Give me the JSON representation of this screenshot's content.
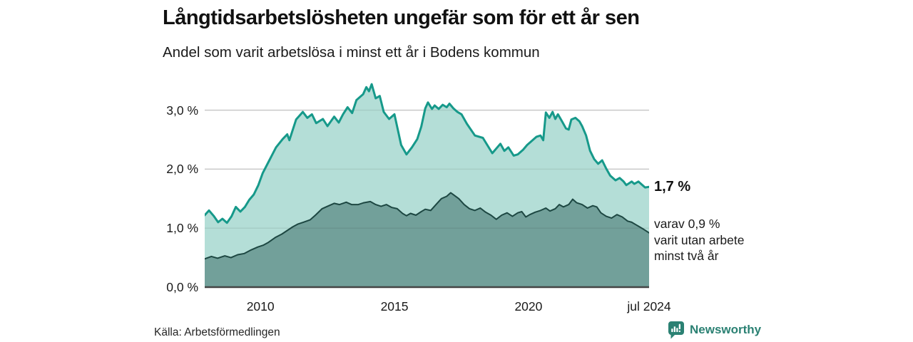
{
  "header": {
    "title": "Långtidsarbetslösheten ungefär som för ett år sen",
    "subtitle": "Andel som varit arbetslösa i minst ett år i Bodens kommun"
  },
  "annotations": {
    "end_value": "1,7 %",
    "sub_lines": [
      "varav 0,9 %",
      "varit utan arbete",
      "minst två år"
    ]
  },
  "footer": {
    "source": "Källa: Arbetsförmedlingen",
    "brand": "Newsworthy"
  },
  "colors": {
    "total_line": "#16998a",
    "total_fill": "#b4ded7",
    "two_year_line": "#1d4742",
    "two_year_fill": "#72a09a",
    "gridline": "#dadada",
    "axis_line": "#454545",
    "brand_teal": "#2b8173"
  },
  "chart_data": {
    "type": "area",
    "title": "Långtidsarbetslösheten ungefär som för ett år sen",
    "subtitle": "Andel som varit arbetslösa i minst ett år i Bodens kommun",
    "xlabel": "",
    "ylabel": "",
    "x_range": [
      2007.92,
      2024.5
    ],
    "ylim": [
      0,
      3.6
    ],
    "grid": "horizontal",
    "legend_position": "none",
    "yticks": [
      {
        "value": 0,
        "label": "0,0 %"
      },
      {
        "value": 1,
        "label": "1,0 %"
      },
      {
        "value": 2,
        "label": "2,0 %"
      },
      {
        "value": 3,
        "label": "3,0 %"
      }
    ],
    "xticks": [
      {
        "value": 2010,
        "label": "2010"
      },
      {
        "value": 2015,
        "label": "2015"
      },
      {
        "value": 2020,
        "label": "2020"
      },
      {
        "value": 2024.5,
        "label": "jul 2024"
      }
    ],
    "series": [
      {
        "name": "Andel arbetslösa minst ett år",
        "end_label": "1,7 %",
        "color": "#16998a",
        "fill": "#b4ded7",
        "stroke_width": 3,
        "points": [
          [
            2007.92,
            1.22
          ],
          [
            2008.08,
            1.3
          ],
          [
            2008.25,
            1.21
          ],
          [
            2008.42,
            1.1
          ],
          [
            2008.58,
            1.16
          ],
          [
            2008.75,
            1.09
          ],
          [
            2008.92,
            1.2
          ],
          [
            2009.08,
            1.36
          ],
          [
            2009.25,
            1.28
          ],
          [
            2009.42,
            1.36
          ],
          [
            2009.58,
            1.48
          ],
          [
            2009.75,
            1.57
          ],
          [
            2009.92,
            1.73
          ],
          [
            2010.08,
            1.93
          ],
          [
            2010.33,
            2.15
          ],
          [
            2010.58,
            2.37
          ],
          [
            2010.83,
            2.51
          ],
          [
            2011.0,
            2.59
          ],
          [
            2011.08,
            2.49
          ],
          [
            2011.33,
            2.84
          ],
          [
            2011.58,
            2.97
          ],
          [
            2011.75,
            2.87
          ],
          [
            2011.92,
            2.93
          ],
          [
            2012.08,
            2.78
          ],
          [
            2012.33,
            2.85
          ],
          [
            2012.5,
            2.73
          ],
          [
            2012.75,
            2.89
          ],
          [
            2012.92,
            2.79
          ],
          [
            2013.08,
            2.93
          ],
          [
            2013.25,
            3.05
          ],
          [
            2013.42,
            2.95
          ],
          [
            2013.58,
            3.17
          ],
          [
            2013.83,
            3.27
          ],
          [
            2013.95,
            3.39
          ],
          [
            2014.05,
            3.32
          ],
          [
            2014.15,
            3.44
          ],
          [
            2014.3,
            3.2
          ],
          [
            2014.45,
            3.24
          ],
          [
            2014.6,
            2.97
          ],
          [
            2014.8,
            2.85
          ],
          [
            2015.0,
            2.93
          ],
          [
            2015.1,
            2.72
          ],
          [
            2015.25,
            2.41
          ],
          [
            2015.45,
            2.25
          ],
          [
            2015.65,
            2.37
          ],
          [
            2015.85,
            2.51
          ],
          [
            2016.0,
            2.72
          ],
          [
            2016.15,
            3.03
          ],
          [
            2016.25,
            3.13
          ],
          [
            2016.4,
            3.02
          ],
          [
            2016.5,
            3.08
          ],
          [
            2016.65,
            3.02
          ],
          [
            2016.8,
            3.09
          ],
          [
            2016.95,
            3.05
          ],
          [
            2017.05,
            3.11
          ],
          [
            2017.2,
            3.03
          ],
          [
            2017.35,
            2.97
          ],
          [
            2017.5,
            2.93
          ],
          [
            2017.7,
            2.77
          ],
          [
            2018.0,
            2.57
          ],
          [
            2018.3,
            2.53
          ],
          [
            2018.65,
            2.27
          ],
          [
            2018.95,
            2.43
          ],
          [
            2019.1,
            2.31
          ],
          [
            2019.25,
            2.37
          ],
          [
            2019.45,
            2.23
          ],
          [
            2019.6,
            2.25
          ],
          [
            2019.8,
            2.33
          ],
          [
            2019.95,
            2.41
          ],
          [
            2020.1,
            2.47
          ],
          [
            2020.3,
            2.55
          ],
          [
            2020.45,
            2.57
          ],
          [
            2020.55,
            2.49
          ],
          [
            2020.65,
            2.96
          ],
          [
            2020.78,
            2.87
          ],
          [
            2020.9,
            2.97
          ],
          [
            2021.0,
            2.85
          ],
          [
            2021.1,
            2.93
          ],
          [
            2021.25,
            2.81
          ],
          [
            2021.4,
            2.69
          ],
          [
            2021.5,
            2.67
          ],
          [
            2021.6,
            2.84
          ],
          [
            2021.75,
            2.87
          ],
          [
            2021.9,
            2.81
          ],
          [
            2022.0,
            2.73
          ],
          [
            2022.15,
            2.57
          ],
          [
            2022.3,
            2.31
          ],
          [
            2022.45,
            2.17
          ],
          [
            2022.6,
            2.09
          ],
          [
            2022.75,
            2.15
          ],
          [
            2022.9,
            2.01
          ],
          [
            2023.05,
            1.89
          ],
          [
            2023.25,
            1.81
          ],
          [
            2023.4,
            1.85
          ],
          [
            2023.55,
            1.79
          ],
          [
            2023.65,
            1.73
          ],
          [
            2023.85,
            1.79
          ],
          [
            2023.95,
            1.75
          ],
          [
            2024.1,
            1.79
          ],
          [
            2024.25,
            1.73
          ],
          [
            2024.35,
            1.69
          ],
          [
            2024.5,
            1.7
          ]
        ]
      },
      {
        "name": "varav utan arbete minst två år",
        "end_label": "varav 0,9 % varit utan arbete minst två år",
        "color": "#1d4742",
        "fill": "#72a09a",
        "stroke_width": 2,
        "points": [
          [
            2007.92,
            0.48
          ],
          [
            2008.17,
            0.52
          ],
          [
            2008.4,
            0.49
          ],
          [
            2008.67,
            0.53
          ],
          [
            2008.9,
            0.5
          ],
          [
            2009.15,
            0.55
          ],
          [
            2009.4,
            0.57
          ],
          [
            2009.65,
            0.63
          ],
          [
            2009.9,
            0.68
          ],
          [
            2010.1,
            0.71
          ],
          [
            2010.3,
            0.76
          ],
          [
            2010.55,
            0.84
          ],
          [
            2010.8,
            0.9
          ],
          [
            2011.0,
            0.96
          ],
          [
            2011.2,
            1.02
          ],
          [
            2011.4,
            1.07
          ],
          [
            2011.6,
            1.1
          ],
          [
            2011.85,
            1.14
          ],
          [
            2012.05,
            1.22
          ],
          [
            2012.3,
            1.33
          ],
          [
            2012.5,
            1.37
          ],
          [
            2012.75,
            1.42
          ],
          [
            2012.95,
            1.4
          ],
          [
            2013.2,
            1.44
          ],
          [
            2013.4,
            1.4
          ],
          [
            2013.65,
            1.4
          ],
          [
            2013.85,
            1.43
          ],
          [
            2014.1,
            1.45
          ],
          [
            2014.3,
            1.4
          ],
          [
            2014.5,
            1.37
          ],
          [
            2014.7,
            1.4
          ],
          [
            2014.9,
            1.35
          ],
          [
            2015.1,
            1.33
          ],
          [
            2015.3,
            1.25
          ],
          [
            2015.45,
            1.21
          ],
          [
            2015.6,
            1.25
          ],
          [
            2015.8,
            1.22
          ],
          [
            2016.0,
            1.28
          ],
          [
            2016.15,
            1.32
          ],
          [
            2016.35,
            1.3
          ],
          [
            2016.55,
            1.4
          ],
          [
            2016.75,
            1.5
          ],
          [
            2016.95,
            1.54
          ],
          [
            2017.1,
            1.6
          ],
          [
            2017.25,
            1.55
          ],
          [
            2017.4,
            1.5
          ],
          [
            2017.6,
            1.4
          ],
          [
            2017.8,
            1.33
          ],
          [
            2018.0,
            1.3
          ],
          [
            2018.2,
            1.34
          ],
          [
            2018.4,
            1.27
          ],
          [
            2018.6,
            1.22
          ],
          [
            2018.8,
            1.15
          ],
          [
            2019.0,
            1.22
          ],
          [
            2019.2,
            1.26
          ],
          [
            2019.4,
            1.2
          ],
          [
            2019.6,
            1.26
          ],
          [
            2019.75,
            1.28
          ],
          [
            2019.9,
            1.19
          ],
          [
            2020.05,
            1.23
          ],
          [
            2020.25,
            1.27
          ],
          [
            2020.45,
            1.3
          ],
          [
            2020.65,
            1.34
          ],
          [
            2020.8,
            1.29
          ],
          [
            2021.0,
            1.33
          ],
          [
            2021.15,
            1.4
          ],
          [
            2021.3,
            1.36
          ],
          [
            2021.5,
            1.4
          ],
          [
            2021.65,
            1.49
          ],
          [
            2021.8,
            1.43
          ],
          [
            2022.0,
            1.4
          ],
          [
            2022.2,
            1.34
          ],
          [
            2022.4,
            1.38
          ],
          [
            2022.55,
            1.36
          ],
          [
            2022.7,
            1.26
          ],
          [
            2022.9,
            1.2
          ],
          [
            2023.1,
            1.17
          ],
          [
            2023.3,
            1.23
          ],
          [
            2023.5,
            1.19
          ],
          [
            2023.7,
            1.12
          ],
          [
            2023.85,
            1.1
          ],
          [
            2024.0,
            1.06
          ],
          [
            2024.15,
            1.02
          ],
          [
            2024.3,
            0.98
          ],
          [
            2024.5,
            0.92
          ]
        ]
      }
    ]
  }
}
